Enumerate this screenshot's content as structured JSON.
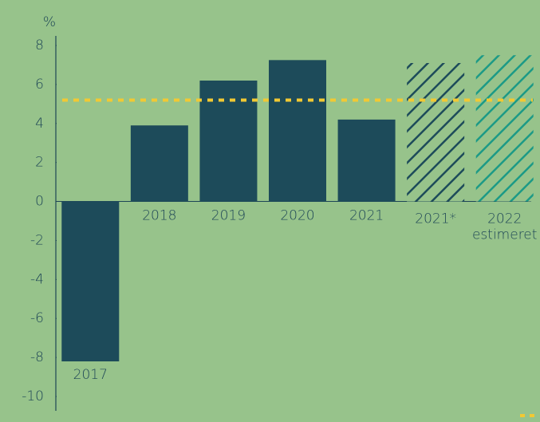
{
  "chart_data": {
    "type": "bar",
    "y_label": "%",
    "categories": [
      "2017",
      "2018",
      "2019",
      "2020",
      "2021",
      "2021*",
      "2022 estimeret"
    ],
    "values": [
      -8.2,
      3.9,
      6.2,
      7.25,
      4.2,
      7.1,
      7.5
    ],
    "colors": [
      "#1d4b5a",
      "#1d4b5a",
      "#1d4b5a",
      "#1d4b5a",
      "#1d4b5a",
      "#1d4b5a",
      "#1c9a86"
    ],
    "hatched": [
      false,
      false,
      false,
      false,
      false,
      true,
      true
    ],
    "reference_line": {
      "value": 5.2,
      "color": "#f2c933",
      "style": "dashed"
    },
    "ylim": [
      -10,
      8
    ],
    "yticks": [
      -10,
      -8,
      -6,
      -4,
      -2,
      0,
      2,
      4,
      6,
      8
    ],
    "grid": false
  }
}
